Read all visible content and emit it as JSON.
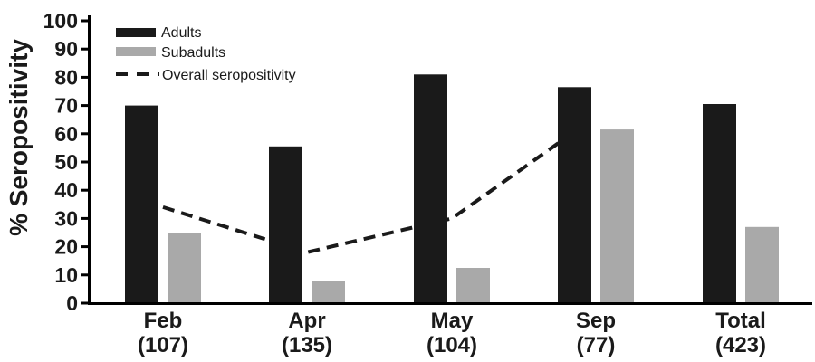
{
  "figure": {
    "type": "scientific-bar-line-chart",
    "background": "#ffffff"
  },
  "colors": {
    "adults_bar": "#1a1a1a",
    "subadults_bar": "#a9a9a9",
    "overall_line": "#1a1a1a",
    "axis": "#1a1a1a",
    "text": "#1a1a1a"
  },
  "chart_data": {
    "type": "bar",
    "title": "",
    "xlabel": "",
    "ylabel": "% Seropositivity",
    "ylim": [
      0,
      100
    ],
    "ytick_step": 10,
    "yticks": [
      0,
      10,
      20,
      30,
      40,
      50,
      60,
      70,
      80,
      90,
      100
    ],
    "grid": false,
    "legend_position": "top-left-inside",
    "categories": [
      "Feb",
      "Apr",
      "May",
      "Sep",
      "Total"
    ],
    "sample_sizes": [
      "(107)",
      "(135)",
      "(104)",
      "(77)",
      "(423)"
    ],
    "series": [
      {
        "name": "Adults",
        "type": "bar",
        "color": "#1a1a1a",
        "values": [
          70,
          55.5,
          81,
          76.5,
          70.5
        ]
      },
      {
        "name": "Subadults",
        "type": "bar",
        "color": "#a9a9a9",
        "values": [
          25,
          8,
          12.5,
          61.5,
          27
        ]
      },
      {
        "name": "Overall seropositivity",
        "type": "dashed-line",
        "color": "#1a1a1a",
        "values": [
          34,
          18,
          30,
          62,
          null
        ],
        "note": "line spans Feb through Sep only; drawn behind bars"
      }
    ]
  }
}
